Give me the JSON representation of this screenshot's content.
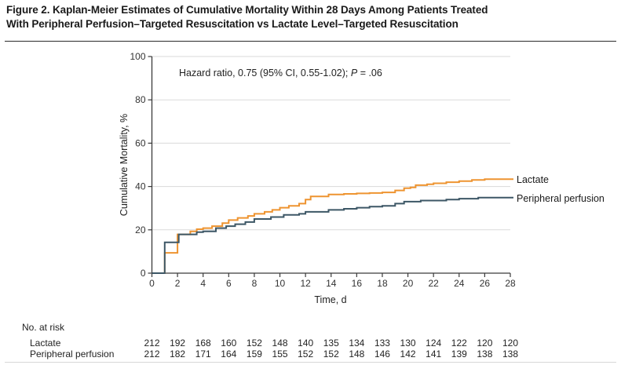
{
  "figure": {
    "title_line1": "Figure 2. Kaplan-Meier Estimates of Cumulative Mortality Within 28 Days Among Patients Treated",
    "title_line2": "With Peripheral Perfusion–Targeted Resuscitation vs Lactate Level–Targeted Resuscitation"
  },
  "annotation": {
    "before": "Hazard ratio, 0.75 (95% CI, 0.55-1.02); ",
    "p_label": "P",
    "after": " = .06"
  },
  "chart_data": {
    "type": "line",
    "subtype": "kaplan-meier-step",
    "title": "",
    "xlabel": "Time, d",
    "ylabel": "Cumulative Mortality, %",
    "xlim": [
      0,
      28
    ],
    "ylim": [
      0,
      100
    ],
    "x_ticks": [
      0,
      2,
      4,
      6,
      8,
      10,
      12,
      14,
      16,
      18,
      20,
      22,
      24,
      26,
      28
    ],
    "y_ticks": [
      0,
      20,
      40,
      60,
      80,
      100
    ],
    "grid": "horizontal",
    "legend_position": "right-of-curve-end",
    "series": [
      {
        "name": "Lactate",
        "color": "#EE9430",
        "steps": [
          [
            0,
            0
          ],
          [
            1,
            9.4
          ],
          [
            2,
            17.9
          ],
          [
            3,
            19.3
          ],
          [
            3.5,
            20.3
          ],
          [
            4,
            20.8
          ],
          [
            4.7,
            21.7
          ],
          [
            5.5,
            23.1
          ],
          [
            6,
            24.5
          ],
          [
            6.7,
            25.5
          ],
          [
            7.5,
            26.4
          ],
          [
            8,
            27.4
          ],
          [
            8.8,
            28.3
          ],
          [
            9.4,
            29.2
          ],
          [
            10,
            30.2
          ],
          [
            10.7,
            31.1
          ],
          [
            11.5,
            32.1
          ],
          [
            12,
            34.0
          ],
          [
            12.4,
            35.4
          ],
          [
            13.8,
            36.3
          ],
          [
            15,
            36.6
          ],
          [
            16,
            36.8
          ],
          [
            17,
            37.0
          ],
          [
            18,
            37.3
          ],
          [
            19,
            38.2
          ],
          [
            19.7,
            39.2
          ],
          [
            20.2,
            39.6
          ],
          [
            20.6,
            40.6
          ],
          [
            21.5,
            41.0
          ],
          [
            22,
            41.5
          ],
          [
            23,
            42.0
          ],
          [
            24,
            42.5
          ],
          [
            25,
            43.0
          ],
          [
            26,
            43.4
          ],
          [
            28,
            43.4
          ]
        ]
      },
      {
        "name": "Peripheral perfusion",
        "color": "#3D5766",
        "steps": [
          [
            0,
            0
          ],
          [
            1,
            14.2
          ],
          [
            2.1,
            17.9
          ],
          [
            3.5,
            18.9
          ],
          [
            4,
            19.3
          ],
          [
            5,
            20.8
          ],
          [
            5.8,
            21.7
          ],
          [
            6.5,
            22.6
          ],
          [
            7.3,
            23.6
          ],
          [
            8,
            25.0
          ],
          [
            9.3,
            25.9
          ],
          [
            10.3,
            26.9
          ],
          [
            11.5,
            27.4
          ],
          [
            12,
            28.3
          ],
          [
            13.8,
            29.2
          ],
          [
            15,
            29.7
          ],
          [
            16,
            30.2
          ],
          [
            17,
            30.7
          ],
          [
            18,
            31.1
          ],
          [
            19,
            32.1
          ],
          [
            19.7,
            33.0
          ],
          [
            21,
            33.5
          ],
          [
            23,
            34.0
          ],
          [
            24,
            34.4
          ],
          [
            25.5,
            34.9
          ],
          [
            28,
            34.9
          ]
        ]
      }
    ]
  },
  "risk_table": {
    "heading": "No. at risk",
    "time_points": [
      0,
      2,
      4,
      6,
      8,
      10,
      12,
      14,
      16,
      18,
      20,
      22,
      24,
      26,
      28
    ],
    "rows": [
      {
        "label": "Lactate",
        "values": [
          212,
          192,
          168,
          160,
          152,
          148,
          140,
          135,
          134,
          133,
          130,
          124,
          122,
          120,
          120
        ]
      },
      {
        "label": "Peripheral perfusion",
        "values": [
          212,
          182,
          171,
          164,
          159,
          155,
          152,
          152,
          148,
          146,
          142,
          141,
          139,
          138,
          138
        ]
      }
    ]
  },
  "colors": {
    "lactate_line": "#EE9430",
    "peripheral_line": "#3D5766",
    "gridline": "#DADADA",
    "axis": "#3a3a3a",
    "title_text": "#1a1a1a",
    "body_text": "#222222"
  }
}
